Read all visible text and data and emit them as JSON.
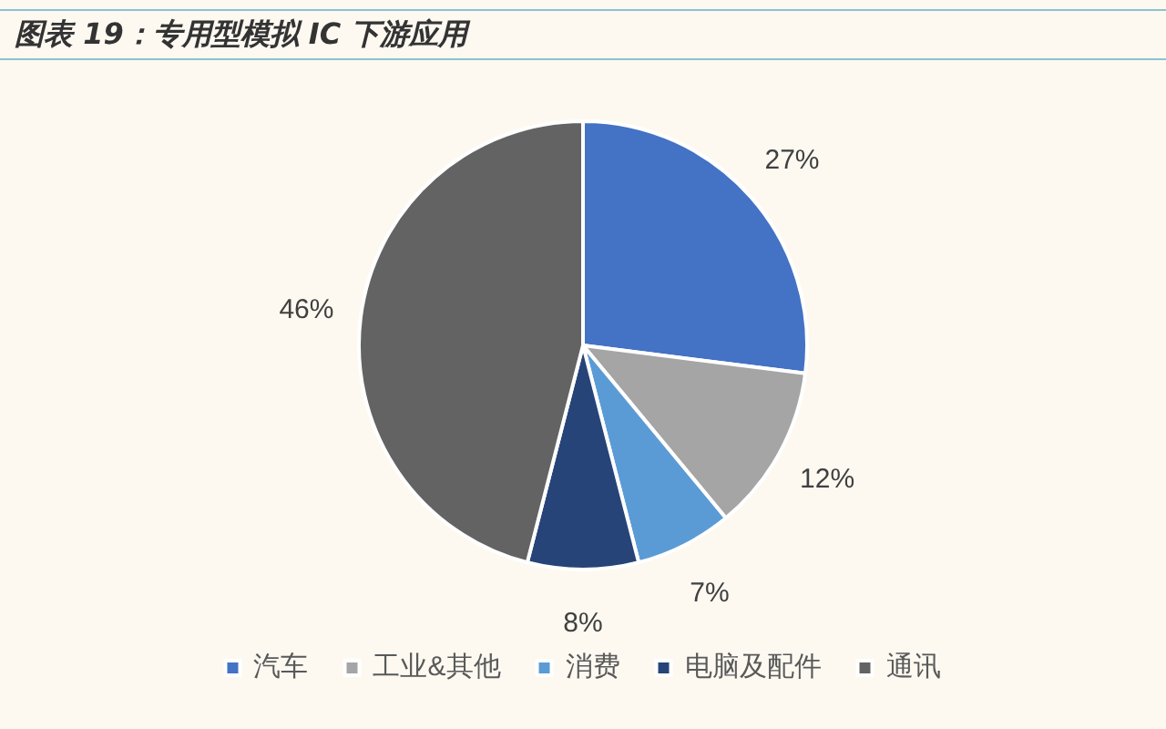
{
  "chart_data": {
    "type": "pie",
    "title": "图表 19：专用型模拟 IC 下游应用",
    "categories": [
      "汽车",
      "工业&其他",
      "消费",
      "电脑及配件",
      "通讯"
    ],
    "values": [
      27,
      12,
      7,
      8,
      46
    ],
    "colors": [
      "#4472c4",
      "#a5a5a5",
      "#5b9bd5",
      "#264478",
      "#636363"
    ],
    "value_labels": [
      "27%",
      "12%",
      "7%",
      "8%",
      "46%"
    ],
    "legend": "bottom"
  }
}
